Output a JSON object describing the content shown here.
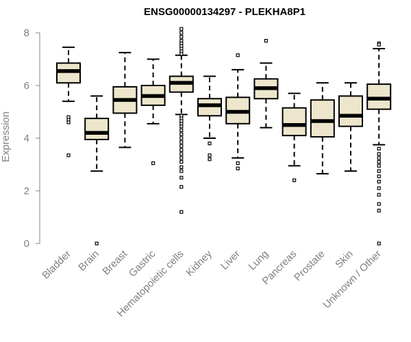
{
  "chart_data": {
    "type": "boxplot",
    "title": "ENSG00000134297 - PLEKHA8P1",
    "ylabel": "Expression",
    "xlabel": "",
    "ylim": [
      0,
      8
    ],
    "yticks": [
      0,
      2,
      4,
      6,
      8
    ],
    "grid": false,
    "box_fill": "#ede6cc",
    "box_stroke": "#000000",
    "categories": [
      "Bladder",
      "Brain",
      "Breast",
      "Gastric",
      "Hematopoietic cells",
      "Kidney",
      "Liver",
      "Lung",
      "Pancreas",
      "Prostate",
      "Skin",
      "Unknown / Other"
    ],
    "boxes": [
      {
        "category": "Bladder",
        "whisker_low": 5.4,
        "q1": 6.1,
        "median": 6.55,
        "q3": 6.85,
        "whisker_high": 7.45,
        "outliers": [
          4.8,
          4.7,
          4.6,
          3.35
        ]
      },
      {
        "category": "Brain",
        "whisker_low": 2.75,
        "q1": 3.95,
        "median": 4.2,
        "q3": 4.75,
        "whisker_high": 5.6,
        "outliers": [
          0.0
        ]
      },
      {
        "category": "Breast",
        "whisker_low": 3.65,
        "q1": 4.95,
        "median": 5.45,
        "q3": 5.95,
        "whisker_high": 7.25,
        "outliers": []
      },
      {
        "category": "Gastric",
        "whisker_low": 4.55,
        "q1": 5.25,
        "median": 5.6,
        "q3": 6.0,
        "whisker_high": 7.0,
        "outliers": [
          3.05
        ]
      },
      {
        "category": "Hematopoietic cells",
        "whisker_low": 4.9,
        "q1": 5.75,
        "median": 6.1,
        "q3": 6.35,
        "whisker_high": 7.15,
        "outliers": [
          8.15,
          8.0,
          7.85,
          7.7,
          7.6,
          7.5,
          7.4,
          7.3,
          7.2,
          4.85,
          4.75,
          4.65,
          4.55,
          4.45,
          4.3,
          4.15,
          4.0,
          3.85,
          3.7,
          3.55,
          3.4,
          3.25,
          3.1,
          2.9,
          2.75,
          2.5,
          2.15,
          1.2
        ]
      },
      {
        "category": "Kidney",
        "whisker_low": 4.0,
        "q1": 4.85,
        "median": 5.25,
        "q3": 5.5,
        "whisker_high": 6.35,
        "outliers": [
          3.8,
          3.35,
          3.2
        ]
      },
      {
        "category": "Liver",
        "whisker_low": 3.25,
        "q1": 4.55,
        "median": 5.0,
        "q3": 5.55,
        "whisker_high": 6.6,
        "outliers": [
          7.15,
          3.05,
          2.85
        ]
      },
      {
        "category": "Lung",
        "whisker_low": 4.4,
        "q1": 5.5,
        "median": 5.9,
        "q3": 6.25,
        "whisker_high": 6.85,
        "outliers": [
          7.7
        ]
      },
      {
        "category": "Pancreas",
        "whisker_low": 2.95,
        "q1": 4.1,
        "median": 4.5,
        "q3": 5.15,
        "whisker_high": 5.7,
        "outliers": [
          2.4
        ]
      },
      {
        "category": "Prostate",
        "whisker_low": 2.65,
        "q1": 4.05,
        "median": 4.65,
        "q3": 5.45,
        "whisker_high": 6.1,
        "outliers": []
      },
      {
        "category": "Skin",
        "whisker_low": 2.75,
        "q1": 4.45,
        "median": 4.85,
        "q3": 5.6,
        "whisker_high": 6.1,
        "outliers": []
      },
      {
        "category": "Unknown / Other",
        "whisker_low": 3.75,
        "q1": 5.1,
        "median": 5.5,
        "q3": 6.05,
        "whisker_high": 7.4,
        "outliers": [
          7.6,
          7.55,
          3.6,
          3.4,
          3.25,
          3.1,
          2.95,
          2.75,
          2.55,
          2.35,
          2.1,
          1.85,
          1.5,
          1.25,
          0.0
        ]
      }
    ]
  }
}
